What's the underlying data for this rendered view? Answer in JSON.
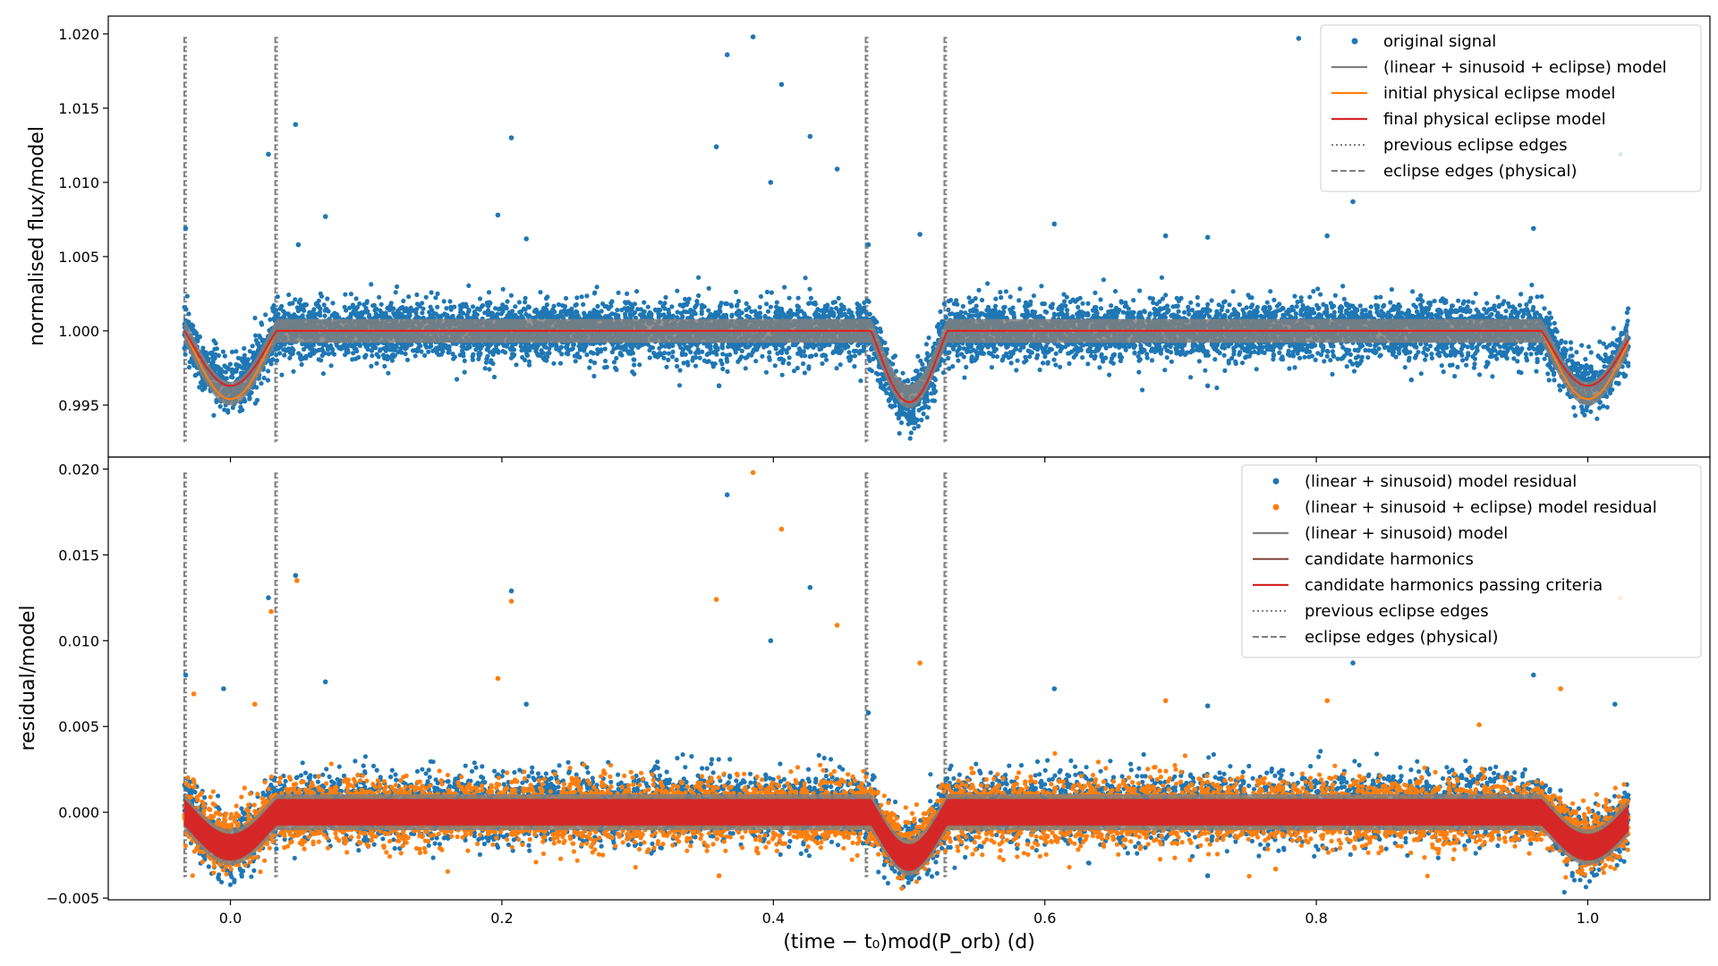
{
  "chart_data": [
    {
      "type": "scatter",
      "panel": "top",
      "ylabel": "normalised flux/model",
      "xlim": [
        -0.09,
        1.09
      ],
      "ylim": [
        0.9915,
        1.0212
      ],
      "x_ticks": [
        0.0,
        0.2,
        0.4,
        0.6,
        0.8,
        1.0
      ],
      "x_tick_labels": [
        "0.0",
        "0.2",
        "0.4",
        "0.6",
        "0.8",
        "1.0"
      ],
      "y_ticks": [
        0.995,
        1.0,
        1.005,
        1.01,
        1.015,
        1.02
      ],
      "y_tick_labels": [
        "0.995",
        "1.000",
        "1.005",
        "1.010",
        "1.015",
        "1.020"
      ],
      "legend_position": "top-right",
      "series": [
        {
          "name": "original signal",
          "kind": "scatter",
          "color": "#1f77b4",
          "noise_sigma": 0.00095,
          "x_range": [
            -0.034,
            1.03
          ]
        },
        {
          "name": "(linear + sinusoid + eclipse) model",
          "kind": "band",
          "color": "#7f7f7f",
          "half_width": 0.0008
        },
        {
          "name": "initial physical eclipse model",
          "kind": "line",
          "color": "#ff7f0e",
          "eclipses": [
            {
              "center": 0.0,
              "half_width": 0.034,
              "depth": 0.0046
            },
            {
              "center": 0.5,
              "half_width": 0.028,
              "depth": 0.0048
            },
            {
              "center": 1.0,
              "half_width": 0.034,
              "depth": 0.0046
            }
          ]
        },
        {
          "name": "final physical eclipse model",
          "kind": "line",
          "color": "#d62728",
          "eclipses": [
            {
              "center": 0.0,
              "half_width": 0.034,
              "depth": 0.0037
            },
            {
              "center": 0.5,
              "half_width": 0.028,
              "depth": 0.0048
            },
            {
              "center": 1.0,
              "half_width": 0.034,
              "depth": 0.0037
            }
          ]
        },
        {
          "name": "previous eclipse edges",
          "kind": "vline_dotted",
          "color": "#7f7f7f",
          "x": [
            -0.034,
            0.033,
            0.468,
            0.526
          ]
        },
        {
          "name": "eclipse edges (physical)",
          "kind": "vline_dashed",
          "color": "#7f7f7f",
          "x": [
            -0.034,
            0.033,
            0.468,
            0.526
          ]
        }
      ],
      "outliers": [
        [
          -0.033,
          1.0069
        ],
        [
          0.028,
          1.0119
        ],
        [
          0.048,
          1.0139
        ],
        [
          0.05,
          1.0058
        ],
        [
          0.07,
          1.0077
        ],
        [
          0.197,
          1.0078
        ],
        [
          0.207,
          1.013
        ],
        [
          0.218,
          1.0062
        ],
        [
          0.358,
          1.0124
        ],
        [
          0.366,
          1.0186
        ],
        [
          0.385,
          1.0198
        ],
        [
          0.398,
          1.01
        ],
        [
          0.406,
          1.0166
        ],
        [
          0.427,
          1.0131
        ],
        [
          0.447,
          1.0109
        ],
        [
          0.47,
          1.0058
        ],
        [
          0.508,
          1.0065
        ],
        [
          0.607,
          1.0072
        ],
        [
          0.689,
          1.0064
        ],
        [
          0.72,
          1.0063
        ],
        [
          0.787,
          1.0197
        ],
        [
          0.808,
          1.0064
        ],
        [
          0.827,
          1.0087
        ],
        [
          0.96,
          1.0069
        ],
        [
          1.024,
          1.0119
        ],
        [
          0.36,
          0.9963
        ],
        [
          0.72,
          0.9963
        ],
        [
          0.87,
          0.9967
        ]
      ],
      "x_range": [
        -0.034,
        1.03
      ]
    },
    {
      "type": "scatter",
      "panel": "bottom",
      "ylabel": "residual/model",
      "xlabel_math": "(time − t₀)mod(P_orb) (d)",
      "xlim": [
        -0.09,
        1.09
      ],
      "ylim": [
        -0.0051,
        0.0207
      ],
      "x_ticks": [
        0.0,
        0.2,
        0.4,
        0.6,
        0.8,
        1.0
      ],
      "x_tick_labels": [
        "0.0",
        "0.2",
        "0.4",
        "0.6",
        "0.8",
        "1.0"
      ],
      "y_ticks": [
        -0.005,
        0.0,
        0.005,
        0.01,
        0.015,
        0.02
      ],
      "y_tick_labels": [
        "−0.005",
        "0.000",
        "0.005",
        "0.010",
        "0.015",
        "0.020"
      ],
      "legend_position": "top-right",
      "series": [
        {
          "name": "(linear + sinusoid) model residual",
          "kind": "scatter",
          "color": "#1f77b4",
          "noise_sigma": 0.00095
        },
        {
          "name": "(linear + sinusoid + eclipse) model residual",
          "kind": "scatter",
          "color": "#ff7f0e",
          "noise_sigma": 0.00095
        },
        {
          "name": "(linear + sinusoid) model",
          "kind": "line",
          "color": "#7f7f7f"
        },
        {
          "name": "candidate harmonics",
          "kind": "line",
          "color": "#8c564b"
        },
        {
          "name": "candidate harmonics passing criteria",
          "kind": "band",
          "color": "#d62728",
          "half_width": 0.0009
        },
        {
          "name": "previous eclipse edges",
          "kind": "vline_dotted",
          "color": "#7f7f7f",
          "x": [
            -0.034,
            0.033,
            0.468,
            0.526
          ]
        },
        {
          "name": "eclipse edges (physical)",
          "kind": "vline_dashed",
          "color": "#7f7f7f",
          "x": [
            -0.034,
            0.033,
            0.468,
            0.526
          ]
        }
      ],
      "outliers": [
        [
          -0.033,
          0.008
        ],
        [
          -0.027,
          0.0069
        ],
        [
          -0.005,
          0.0072
        ],
        [
          0.018,
          0.0063
        ],
        [
          0.028,
          0.0125
        ],
        [
          0.03,
          0.0117
        ],
        [
          0.048,
          0.0138
        ],
        [
          0.049,
          0.0135
        ],
        [
          0.07,
          0.0076
        ],
        [
          0.197,
          0.0078
        ],
        [
          0.207,
          0.0129
        ],
        [
          0.207,
          0.0123
        ],
        [
          0.218,
          0.0063
        ],
        [
          0.358,
          0.0124
        ],
        [
          0.366,
          0.0185
        ],
        [
          0.385,
          0.0198
        ],
        [
          0.398,
          0.01
        ],
        [
          0.406,
          0.0165
        ],
        [
          0.427,
          0.0131
        ],
        [
          0.447,
          0.0109
        ],
        [
          0.47,
          0.0058
        ],
        [
          0.508,
          0.0087
        ],
        [
          0.607,
          0.0072
        ],
        [
          0.689,
          0.0065
        ],
        [
          0.72,
          0.0062
        ],
        [
          0.808,
          0.0065
        ],
        [
          0.827,
          0.0087
        ],
        [
          0.92,
          0.0051
        ],
        [
          0.96,
          0.008
        ],
        [
          0.98,
          0.0072
        ],
        [
          1.02,
          0.0063
        ],
        [
          1.024,
          0.0125
        ],
        [
          0.0,
          -0.0036
        ],
        [
          0.36,
          -0.0037
        ],
        [
          0.72,
          -0.0037
        ],
        [
          0.77,
          -0.0033
        ],
        [
          0.996,
          -0.0036
        ]
      ],
      "x_range": [
        -0.034,
        1.03
      ]
    }
  ]
}
